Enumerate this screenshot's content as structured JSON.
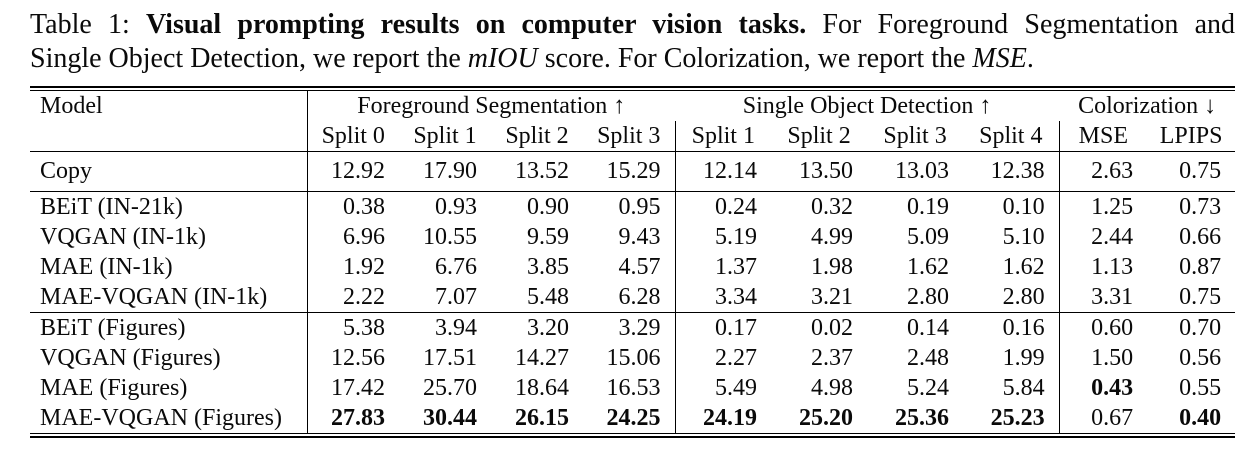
{
  "caption": {
    "line1": {
      "prefix": "Table 1: ",
      "bold": "Visual prompting results on computer vision tasks.",
      "rest": " For Foreground Segmentation and"
    },
    "line2": {
      "pre": "Single Object Detection, we report the ",
      "italic1": "mIOU",
      "mid": " score. For Colorization, we report the ",
      "italic2": "MSE",
      "end": "."
    }
  },
  "table": {
    "model_header": "Model",
    "groups": [
      {
        "label": "Foreground Segmentation ↑",
        "span": 4
      },
      {
        "label": "Single Object Detection ↑",
        "span": 4
      },
      {
        "label": "Colorization ↓",
        "span": 2
      }
    ],
    "subheaders": [
      "Split 0",
      "Split 1",
      "Split 2",
      "Split 3",
      "Split 1",
      "Split 2",
      "Split 3",
      "Split 4",
      "MSE",
      "LPIPS"
    ],
    "blocks": [
      {
        "rows": [
          {
            "model": "Copy",
            "values": [
              "12.92",
              "17.90",
              "13.52",
              "15.29",
              "12.14",
              "13.50",
              "13.03",
              "12.38",
              "2.63",
              "0.75"
            ]
          }
        ]
      },
      {
        "rows": [
          {
            "model": "BEiT (IN-21k)",
            "values": [
              "0.38",
              "0.93",
              "0.90",
              "0.95",
              "0.24",
              "0.32",
              "0.19",
              "0.10",
              "1.25",
              "0.73"
            ]
          },
          {
            "model": "VQGAN (IN-1k)",
            "values": [
              "6.96",
              "10.55",
              "9.59",
              "9.43",
              "5.19",
              "4.99",
              "5.09",
              "5.10",
              "2.44",
              "0.66"
            ]
          },
          {
            "model": "MAE (IN-1k)",
            "values": [
              "1.92",
              "6.76",
              "3.85",
              "4.57",
              "1.37",
              "1.98",
              "1.62",
              "1.62",
              "1.13",
              "0.87"
            ]
          },
          {
            "model": "MAE-VQGAN (IN-1k)",
            "values": [
              "2.22",
              "7.07",
              "5.48",
              "6.28",
              "3.34",
              "3.21",
              "2.80",
              "2.80",
              "3.31",
              "0.75"
            ]
          }
        ]
      },
      {
        "rows": [
          {
            "model": "BEiT (Figures)",
            "values": [
              "5.38",
              "3.94",
              "3.20",
              "3.29",
              "0.17",
              "0.02",
              "0.14",
              "0.16",
              "0.60",
              "0.70"
            ]
          },
          {
            "model": "VQGAN (Figures)",
            "values": [
              "12.56",
              "17.51",
              "14.27",
              "15.06",
              "2.27",
              "2.37",
              "2.48",
              "1.99",
              "1.50",
              "0.56"
            ]
          },
          {
            "model": "MAE (Figures)",
            "values": [
              "17.42",
              "25.70",
              "18.64",
              "16.53",
              "5.49",
              "4.98",
              "5.24",
              "5.84",
              "0.43",
              "0.55"
            ],
            "bold": [
              false,
              false,
              false,
              false,
              false,
              false,
              false,
              false,
              true,
              false
            ]
          },
          {
            "model": "MAE-VQGAN (Figures)",
            "values": [
              "27.83",
              "30.44",
              "26.15",
              "24.25",
              "24.19",
              "25.20",
              "25.36",
              "25.23",
              "0.67",
              "0.40"
            ],
            "bold": [
              true,
              true,
              true,
              true,
              true,
              true,
              true,
              true,
              false,
              true
            ]
          }
        ]
      }
    ]
  }
}
